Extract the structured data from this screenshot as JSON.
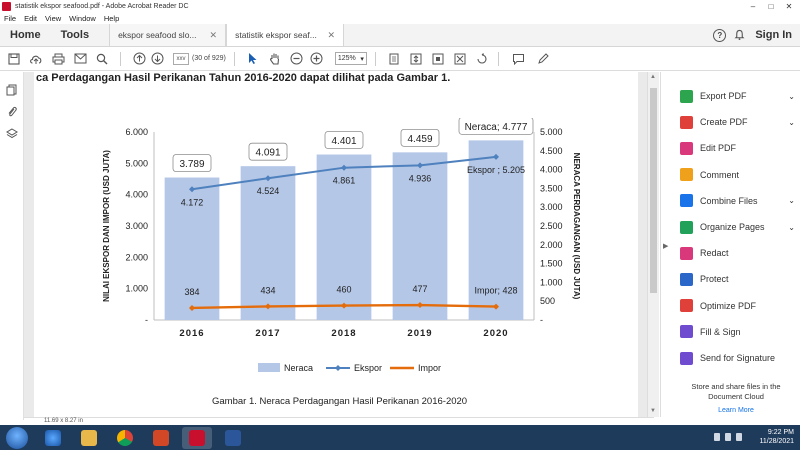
{
  "window": {
    "title": "statistik ekspor seafood.pdf - Adobe Acrobat Reader DC"
  },
  "menu": [
    "File",
    "Edit",
    "View",
    "Window",
    "Help"
  ],
  "tabs": {
    "home": "Home",
    "tools": "Tools",
    "doc1": "ekspor seafood slo...",
    "doc2": "statistik ekspor seaf...",
    "signin": "Sign In"
  },
  "toolbar": {
    "page_input": "xxv",
    "page_count": "(30 of 929)",
    "zoom": "125%"
  },
  "document": {
    "intro_text": "ca Perdagangan Hasil Perikanan Tahun 2016-2020 dapat dilihat pada Gambar 1.",
    "caption": "Gambar 1. Neraca Perdagangan Hasil Perikanan 2016-2020"
  },
  "chart_data": {
    "type": "bar",
    "categories": [
      "2016",
      "2017",
      "2018",
      "2019",
      "2020"
    ],
    "ylabel": "NILAI EKSPOR DAN IMPOR (USD JUTA)",
    "y2label": "NERACA PERDAGANGAN (USD JUTA)",
    "ylim": [
      0,
      6000
    ],
    "y2lim": [
      0,
      5000
    ],
    "yticks": [
      "-",
      "1.000",
      "2.000",
      "3.000",
      "4.000",
      "5.000",
      "6.000"
    ],
    "y2ticks": [
      "-",
      "500",
      "1.000",
      "1.500",
      "2.000",
      "2.500",
      "3.000",
      "3.500",
      "4.000",
      "4.500",
      "5.000"
    ],
    "series": [
      {
        "name": "Neraca",
        "kind": "bar",
        "axis": "right",
        "color": "#b4c7e7",
        "values": [
          3789,
          4091,
          4401,
          4459,
          4777
        ],
        "labels": [
          "3.789",
          "4.091",
          "4.401",
          "4.459",
          "Neraca; 4.777"
        ]
      },
      {
        "name": "Ekspor",
        "kind": "line",
        "axis": "left",
        "color": "#4e81bd",
        "values": [
          4172,
          4524,
          4861,
          4936,
          5205
        ],
        "labels": [
          "4.172",
          "4.524",
          "4.861",
          "4.936",
          "Ekspor ; 5.205"
        ]
      },
      {
        "name": "Impor",
        "kind": "line",
        "axis": "left",
        "color": "#e46c0a",
        "values": [
          384,
          434,
          460,
          477,
          428
        ],
        "labels": [
          "384",
          "434",
          "460",
          "477",
          "Impor; 428"
        ]
      }
    ],
    "legend": "bottom"
  },
  "right_panel": {
    "tools": [
      {
        "label": "Export PDF",
        "icon": "export-pdf-icon",
        "color": "#2da44e",
        "chevron": true
      },
      {
        "label": "Create PDF",
        "icon": "create-pdf-icon",
        "color": "#e0403a",
        "chevron": true
      },
      {
        "label": "Edit PDF",
        "icon": "edit-pdf-icon",
        "color": "#d9397b",
        "chevron": false
      },
      {
        "label": "Comment",
        "icon": "comment-icon",
        "color": "#f0a11c",
        "chevron": false
      },
      {
        "label": "Combine Files",
        "icon": "combine-files-icon",
        "color": "#1a73e8",
        "chevron": true
      },
      {
        "label": "Organize Pages",
        "icon": "organize-pages-icon",
        "color": "#21a15a",
        "chevron": true
      },
      {
        "label": "Redact",
        "icon": "redact-icon",
        "color": "#d9397b",
        "chevron": false
      },
      {
        "label": "Protect",
        "icon": "protect-icon",
        "color": "#2b66c9",
        "chevron": false
      },
      {
        "label": "Optimize PDF",
        "icon": "optimize-pdf-icon",
        "color": "#e0403a",
        "chevron": false
      },
      {
        "label": "Fill & Sign",
        "icon": "fill-sign-icon",
        "color": "#6f4ccf",
        "chevron": false
      },
      {
        "label": "Send for Signature",
        "icon": "send-signature-icon",
        "color": "#6f4ccf",
        "chevron": false
      }
    ],
    "cloud_text": "Store and share files in the Document Cloud",
    "learn_more": "Learn More"
  },
  "status": {
    "page_size": "11.69 x 8.27 in"
  },
  "taskbar": {
    "time": "9:22 PM",
    "date": "11/28/2021"
  }
}
